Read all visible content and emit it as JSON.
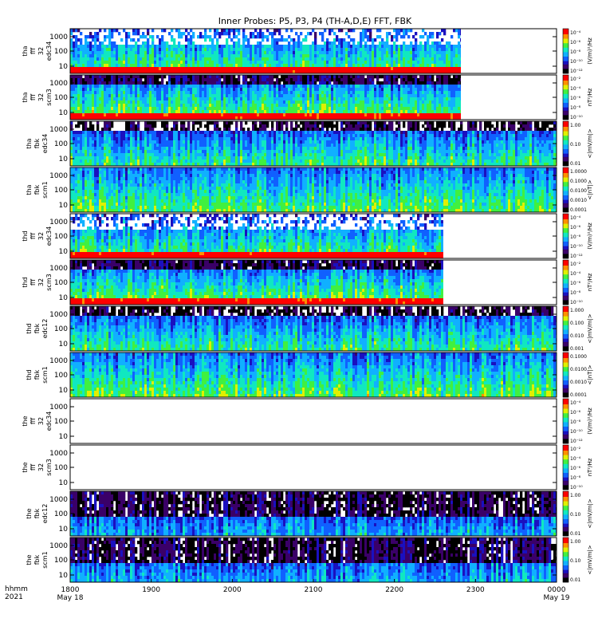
{
  "title": "Inner Probes: P5, P3, P4 (TH-A,D,E) FFT, FBK",
  "colors": {
    "background": "#ffffff",
    "spectrogram_scale": [
      "#000000",
      "#3a0068",
      "#1a10c0",
      "#1060ff",
      "#10b0ff",
      "#10e8c0",
      "#40f040",
      "#e0f000",
      "#ff9000",
      "#ff0000"
    ]
  },
  "chart_data": [
    {
      "type": "heatmap",
      "panel": 1,
      "ylabel_lines": [
        "tha",
        "fff",
        "32",
        "edc34"
      ],
      "y_ticks": [
        "1000",
        "100",
        "10"
      ],
      "colorbar_label": "(V/m)²/Hz",
      "colorbar_ticks": [
        "10⁻⁴",
        "10⁻⁶",
        "10⁻⁸",
        "10⁻¹⁰",
        "10⁻¹²"
      ],
      "data_end": "2249"
    },
    {
      "type": "heatmap",
      "panel": 2,
      "ylabel_lines": [
        "tha",
        "fff",
        "32",
        "scm3"
      ],
      "y_ticks": [
        "1000",
        "100",
        "10"
      ],
      "colorbar_label": "nT²/Hz",
      "colorbar_ticks": [
        "10⁻²",
        "10⁻⁴",
        "10⁻⁶",
        "10⁻⁸",
        "10⁻¹⁰"
      ],
      "data_end": "2249"
    },
    {
      "type": "heatmap",
      "panel": 3,
      "ylabel_lines": [
        "tha",
        "fbk",
        "edc34"
      ],
      "y_ticks": [
        "1000",
        "100",
        "10"
      ],
      "colorbar_label": "<|mV/m|>",
      "colorbar_ticks": [
        "1.00",
        "0.10",
        "0.01"
      ],
      "data_end": "0000"
    },
    {
      "type": "heatmap",
      "panel": 4,
      "ylabel_lines": [
        "tha",
        "fbk",
        "scm1"
      ],
      "y_ticks": [
        "1000",
        "100",
        "10"
      ],
      "colorbar_label": "<|nT|>",
      "colorbar_ticks": [
        "1.0000",
        "0.1000",
        "0.0100",
        "0.0010",
        "0.0001"
      ],
      "data_end": "0000"
    },
    {
      "type": "heatmap",
      "panel": 5,
      "ylabel_lines": [
        "thd",
        "fff",
        "32",
        "edc34"
      ],
      "y_ticks": [
        "1000",
        "100",
        "10"
      ],
      "colorbar_label": "(V/m)²/Hz",
      "colorbar_ticks": [
        "10⁻⁴",
        "10⁻⁶",
        "10⁻⁸",
        "10⁻¹⁰",
        "10⁻¹²"
      ],
      "data_end": "2236"
    },
    {
      "type": "heatmap",
      "panel": 6,
      "ylabel_lines": [
        "thd",
        "fff",
        "32",
        "scm3"
      ],
      "y_ticks": [
        "1000",
        "100",
        "10"
      ],
      "colorbar_label": "nT²/Hz",
      "colorbar_ticks": [
        "10⁻²",
        "10⁻⁴",
        "10⁻⁶",
        "10⁻⁸",
        "10⁻¹⁰"
      ],
      "data_end": "2236"
    },
    {
      "type": "heatmap",
      "panel": 7,
      "ylabel_lines": [
        "thd",
        "fbk",
        "edc12"
      ],
      "y_ticks": [
        "1000",
        "100",
        "10"
      ],
      "colorbar_label": "<|mV/m|>",
      "colorbar_ticks": [
        "1.000",
        "0.100",
        "0.010",
        "0.001"
      ],
      "data_end": "0000"
    },
    {
      "type": "heatmap",
      "panel": 8,
      "ylabel_lines": [
        "thd",
        "fbk",
        "scm1"
      ],
      "y_ticks": [
        "1000",
        "100",
        "10"
      ],
      "colorbar_label": "<|nT|>",
      "colorbar_ticks": [
        "0.1000",
        "0.0100",
        "0.0010",
        "0.0001"
      ],
      "data_end": "0000"
    },
    {
      "type": "heatmap",
      "panel": 9,
      "ylabel_lines": [
        "the",
        "fff",
        "32",
        "edc34"
      ],
      "y_ticks": [
        "1000",
        "100",
        "10"
      ],
      "colorbar_label": "(V/m)²/Hz",
      "colorbar_ticks": [
        "10⁻⁴",
        "10⁻⁶",
        "10⁻⁸",
        "10⁻¹⁰",
        "10⁻¹²"
      ],
      "data_end": "none"
    },
    {
      "type": "heatmap",
      "panel": 10,
      "ylabel_lines": [
        "the",
        "fff",
        "32",
        "scm3"
      ],
      "y_ticks": [
        "1000",
        "100",
        "10"
      ],
      "colorbar_label": "nT²/Hz",
      "colorbar_ticks": [
        "10⁻²",
        "10⁻⁴",
        "10⁻⁶",
        "10⁻⁸",
        "10⁻¹⁰"
      ],
      "data_end": "none"
    },
    {
      "type": "heatmap",
      "panel": 11,
      "ylabel_lines": [
        "the",
        "fbk",
        "edc12"
      ],
      "y_ticks": [
        "1000",
        "100",
        "10"
      ],
      "colorbar_label": "<|mV/m|>",
      "colorbar_ticks": [
        "1.00",
        "0.10",
        "0.01"
      ],
      "data_end": "0000"
    },
    {
      "type": "heatmap",
      "panel": 12,
      "ylabel_lines": [
        "the",
        "fbk",
        "scm1"
      ],
      "y_ticks": [
        "1000",
        "100",
        "10"
      ],
      "colorbar_label": "<|mV/m|>",
      "colorbar_ticks": [
        "1.00",
        "0.10",
        "0.01"
      ],
      "data_end": "0000"
    }
  ],
  "x_axis": {
    "ticks": [
      "1800",
      "1900",
      "2000",
      "2100",
      "2200",
      "2300",
      "0000"
    ],
    "start_date": "May 18",
    "end_date": "May 19"
  },
  "footer": {
    "line1": "hhmm",
    "line2": "2021"
  }
}
